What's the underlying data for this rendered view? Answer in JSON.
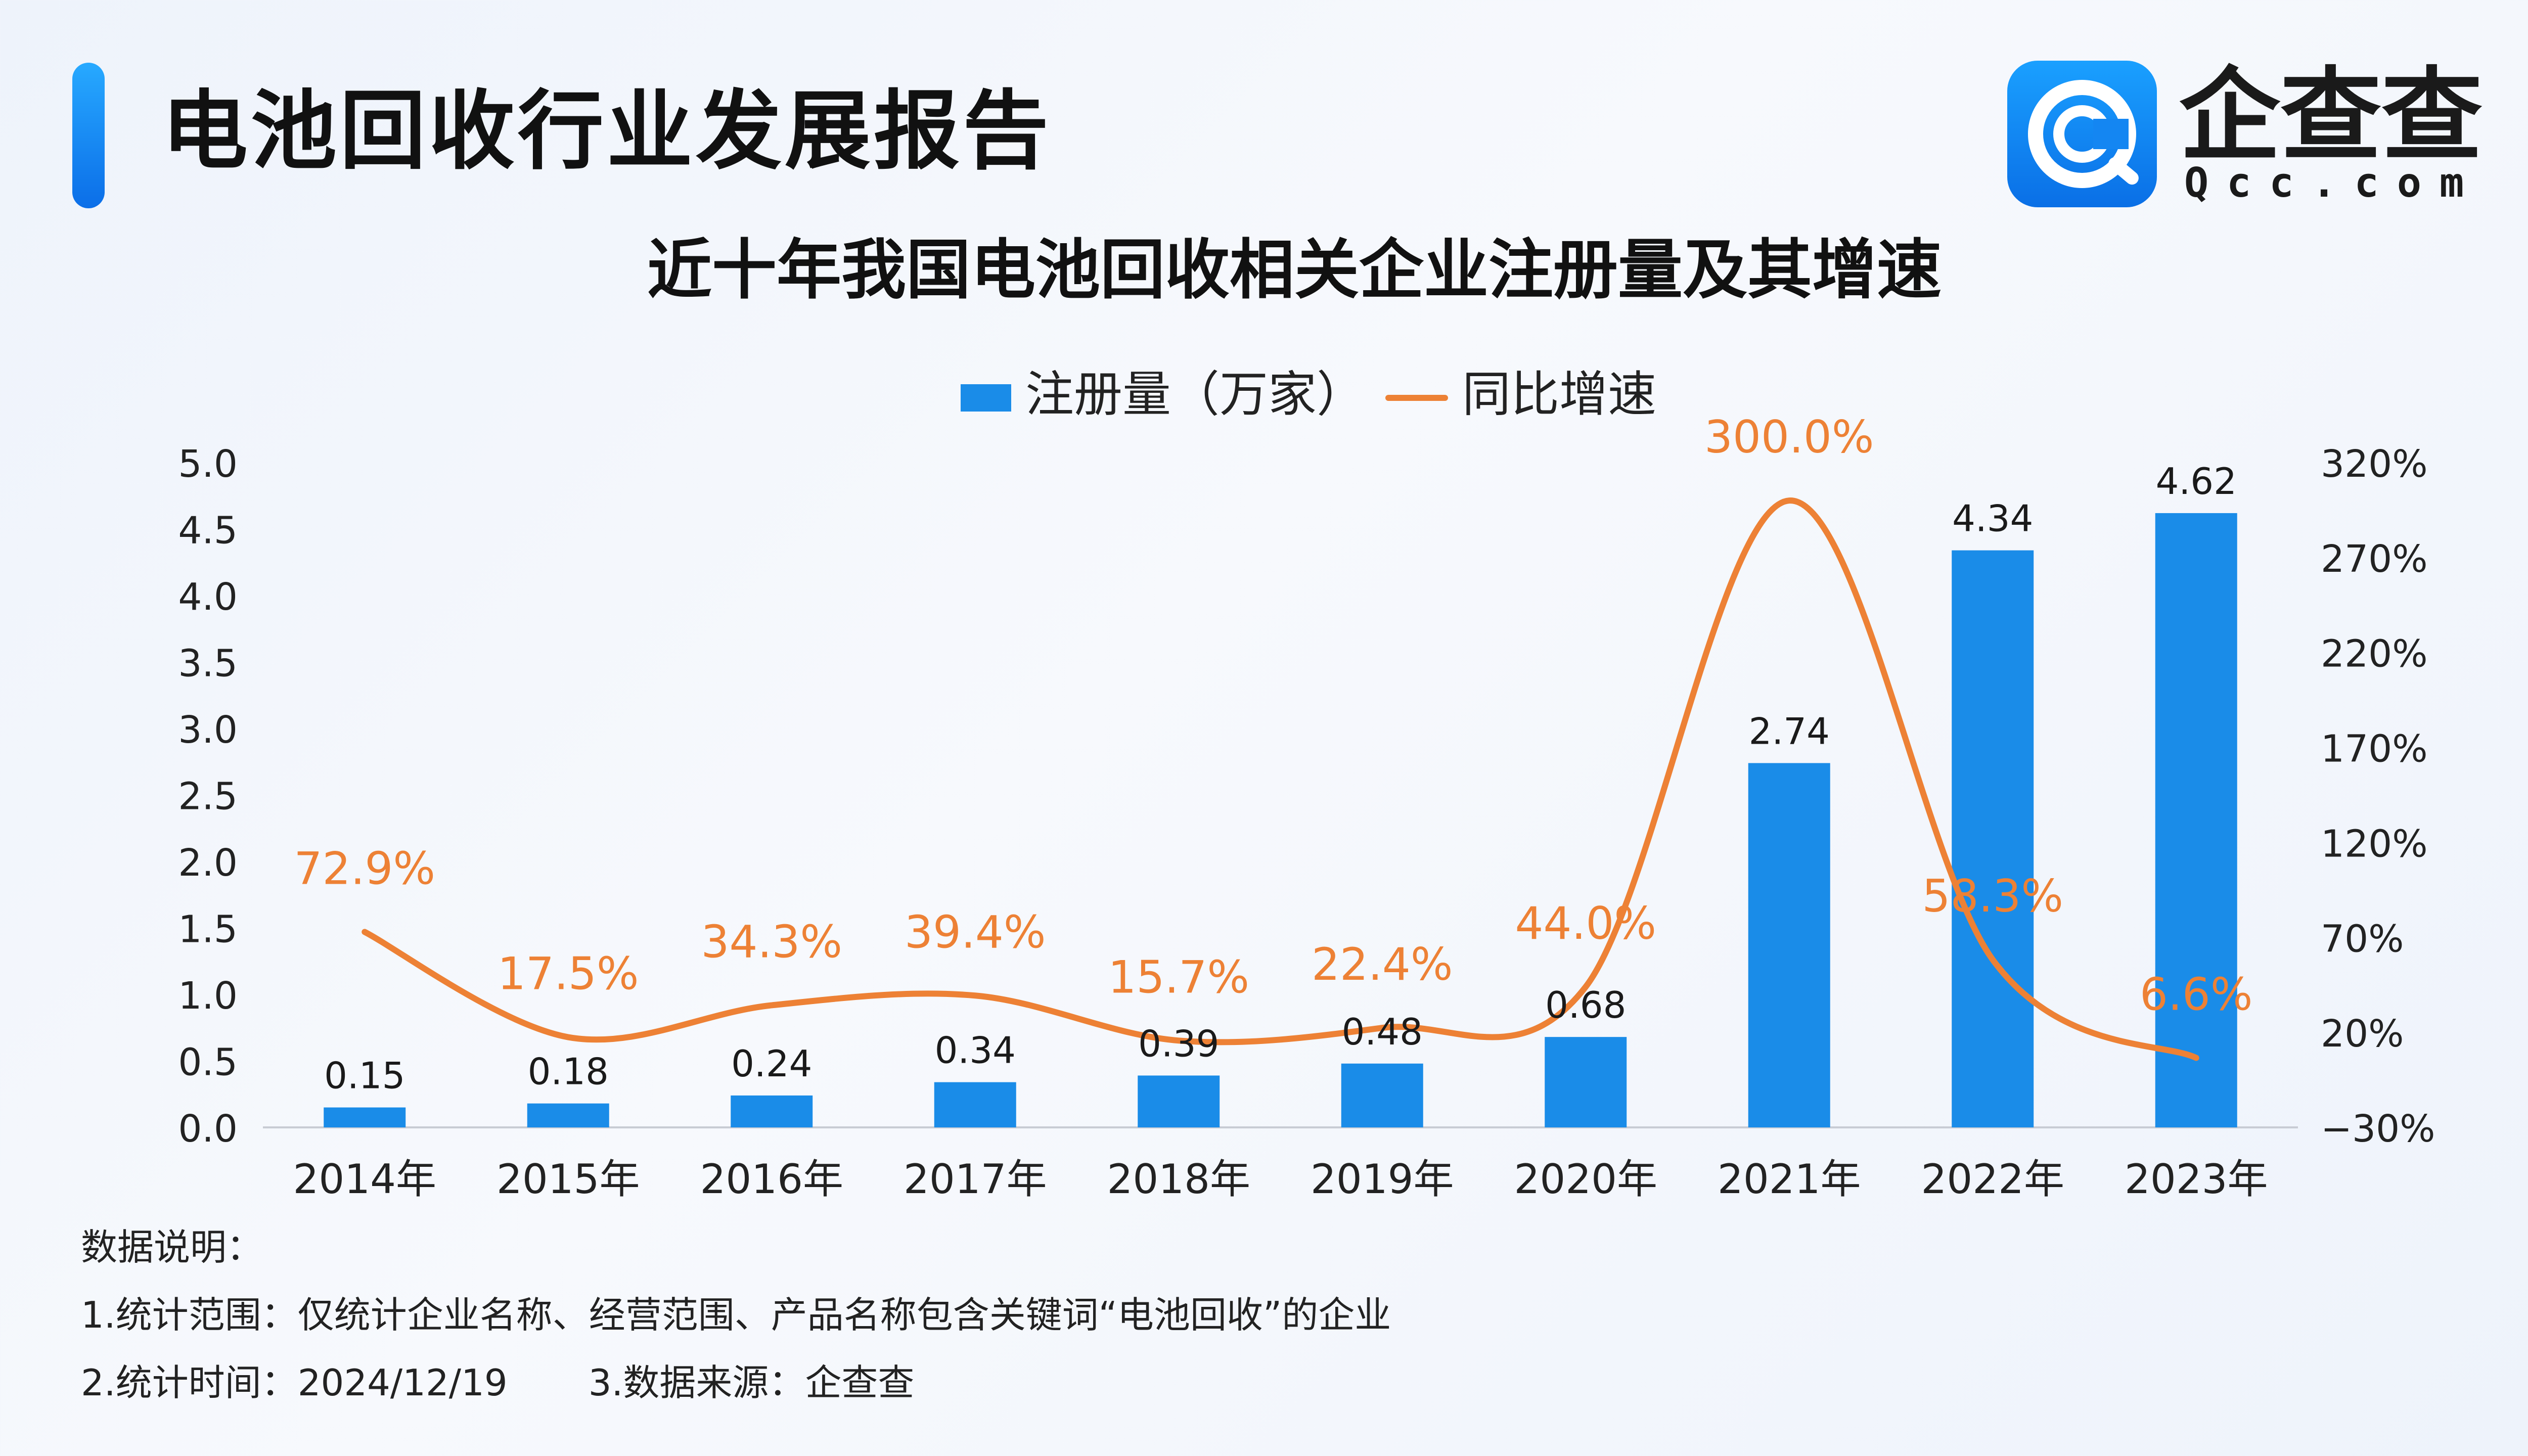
{
  "header": {
    "report_title": "电池回收行业发展报告",
    "logo_text": "企查查",
    "logo_sub": "Qcc.com"
  },
  "colors": {
    "bar": "#1a8ce8",
    "line": "#ed8135",
    "accent": "#1a8ce8"
  },
  "chart_data": {
    "type": "bar",
    "title": "近十年我国电池回收相关企业注册量及其增速",
    "categories": [
      "2014年",
      "2015年",
      "2016年",
      "2017年",
      "2018年",
      "2019年",
      "2020年",
      "2021年",
      "2022年",
      "2023年"
    ],
    "series": [
      {
        "name": "注册量（万家）",
        "type": "bar",
        "axis": "left",
        "values": [
          0.15,
          0.18,
          0.24,
          0.34,
          0.39,
          0.48,
          0.68,
          2.74,
          4.34,
          4.62
        ],
        "labels": [
          "0.15",
          "0.18",
          "0.24",
          "0.34",
          "0.39",
          "0.48",
          "0.68",
          "2.74",
          "4.34",
          "4.62"
        ]
      },
      {
        "name": "同比增速",
        "type": "line",
        "axis": "right",
        "smooth": true,
        "values": [
          72.9,
          17.5,
          34.3,
          39.4,
          15.7,
          22.4,
          44.0,
          300.0,
          58.3,
          6.6
        ],
        "labels": [
          "72.9%",
          "17.5%",
          "34.3%",
          "39.4%",
          "15.7%",
          "22.4%",
          "44.0%",
          "300.0%",
          "58.3%",
          "6.6%"
        ]
      }
    ],
    "y_left": {
      "min": 0,
      "max": 5,
      "ticks": [
        "5.0",
        "4.5",
        "4.0",
        "3.5",
        "3.0",
        "2.5",
        "2.0",
        "1.5",
        "1.0",
        "0.5",
        "0.0"
      ]
    },
    "y_right": {
      "min": -30,
      "max": 320,
      "ticks": [
        "320%",
        "270%",
        "220%",
        "170%",
        "120%",
        "70%",
        "20%",
        "−30%"
      ]
    },
    "grid": false,
    "legend_position": "top-center"
  },
  "notes": {
    "heading": "数据说明：",
    "line1": "1.统计范围：仅统计企业名称、经营范围、产品名称包含关键词“电池回收”的企业",
    "line2a": "2.统计时间：2024/12/19",
    "line2b": "3.数据来源：企查查"
  }
}
